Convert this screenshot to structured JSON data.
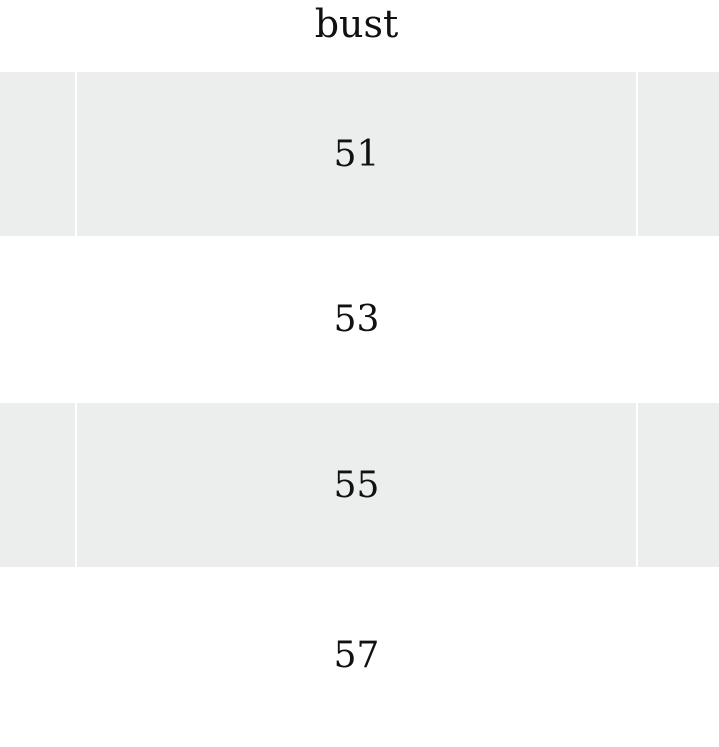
{
  "table": {
    "column_header": "bust",
    "rows": [
      {
        "value": "51",
        "striped": true
      },
      {
        "value": "53",
        "striped": false
      },
      {
        "value": "55",
        "striped": true
      },
      {
        "value": "57",
        "striped": false
      }
    ]
  },
  "colors": {
    "stripe": "#eceeed",
    "background": "#ffffff"
  }
}
